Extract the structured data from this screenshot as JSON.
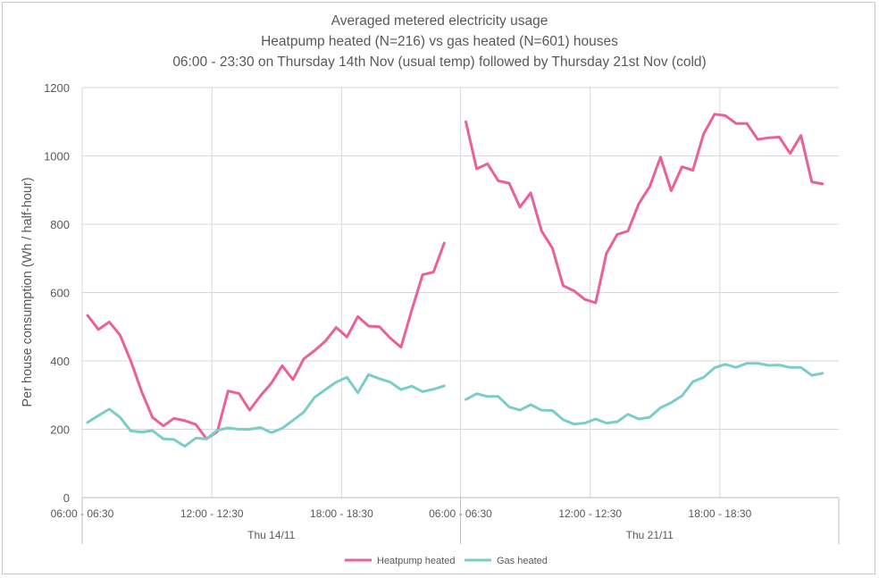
{
  "chart_data": {
    "type": "line",
    "title": [
      "Averaged metered electricity usage",
      "Heatpump heated (N=216) vs gas heated (N=601) houses",
      "06:00 - 23:30 on Thursday 14th Nov (usual temp) followed by Thursday 21st Nov (cold)"
    ],
    "ylabel": "Per house consumption (Wh / half-hour)",
    "ylim": [
      0,
      1200
    ],
    "yticks": [
      "0",
      "200",
      "400",
      "600",
      "800",
      "1000",
      "1200"
    ],
    "grid": true,
    "legend_position": "bottom",
    "groups": [
      {
        "label": "Thu 14/11",
        "ticks": [
          "06:00 - 06:30",
          "12:00 - 12:30",
          "18:00 - 18:30"
        ]
      },
      {
        "label": "Thu 21/11",
        "ticks": [
          "06:00 - 06:30",
          "12:00 - 12:30",
          "18:00 - 18:30"
        ]
      }
    ],
    "series": [
      {
        "name": "Heatpump heated",
        "color": "#e9609b",
        "day1": [
          533,
          492,
          514,
          476,
          400,
          310,
          235,
          210,
          232,
          225,
          214,
          172,
          193,
          312,
          305,
          256,
          298,
          335,
          386,
          345,
          406,
          430,
          458,
          498,
          470,
          530,
          502,
          500,
          467,
          440,
          550,
          652,
          660,
          745
        ],
        "day2": [
          1100,
          962,
          977,
          927,
          920,
          850,
          892,
          780,
          730,
          620,
          605,
          580,
          570,
          715,
          770,
          780,
          860,
          910,
          996,
          898,
          968,
          958,
          1065,
          1122,
          1118,
          1095,
          1095,
          1048,
          1053,
          1055,
          1007,
          1060,
          924,
          918
        ]
      },
      {
        "name": "Gas heated",
        "color": "#7acdc8",
        "day1": [
          220,
          240,
          259,
          235,
          195,
          192,
          196,
          172,
          170,
          150,
          174,
          172,
          197,
          204,
          200,
          200,
          205,
          190,
          203,
          226,
          250,
          293,
          316,
          338,
          352,
          307,
          360,
          348,
          338,
          316,
          326,
          310,
          317,
          327
        ],
        "day2": [
          287,
          304,
          296,
          296,
          265,
          256,
          272,
          256,
          255,
          228,
          215,
          218,
          230,
          218,
          222,
          244,
          230,
          235,
          263,
          278,
          298,
          339,
          352,
          380,
          390,
          381,
          393,
          393,
          387,
          388,
          381,
          381,
          358,
          364
        ]
      }
    ]
  }
}
